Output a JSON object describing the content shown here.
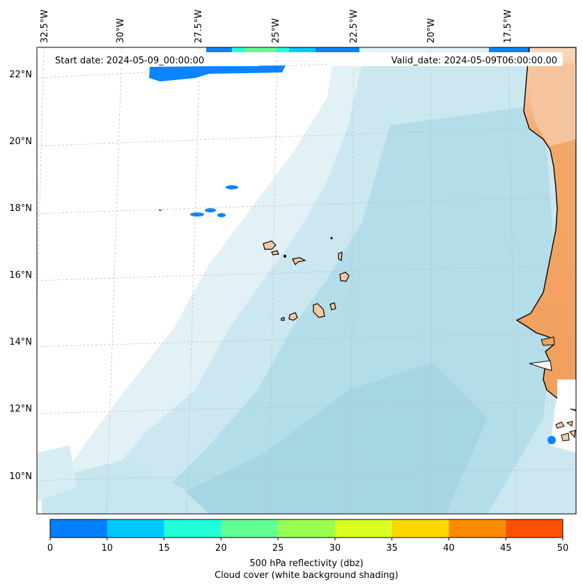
{
  "header": {
    "start_date": "Start date: 2024-05-09_00:00:00",
    "valid_date": "Valid_date: 2024-05-09T06:00:00.00"
  },
  "axes": {
    "lon_labels": [
      "32.5°W",
      "30°W",
      "27.5°W",
      "25°W",
      "22.5°W",
      "20°W",
      "17.5°W"
    ],
    "lat_labels": [
      "22°N",
      "20°N",
      "18°N",
      "16°N",
      "14°N",
      "12°N",
      "10°N"
    ]
  },
  "colorbar": {
    "ticks": [
      "0",
      "10",
      "15",
      "20",
      "25",
      "30",
      "35",
      "40",
      "45",
      "50"
    ],
    "colors": [
      "#0080ff",
      "#00c8ff",
      "#20ffd8",
      "#60ff90",
      "#98ff50",
      "#d8ff20",
      "#ffd800",
      "#ff8c00",
      "#ff5000"
    ],
    "label_line1": "500 hPa reflectivity (dbz)",
    "label_line2": "Cloud cover (white background shading)"
  },
  "colors": {
    "ocean_cloud": "#a8d8e6",
    "land": "#f2a060",
    "island": "#f8c8a0",
    "reflectivity_low": "#0a84ff"
  }
}
